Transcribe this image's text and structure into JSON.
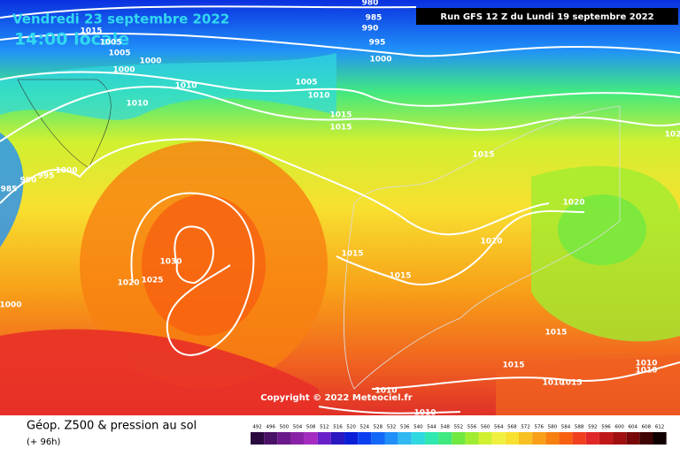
{
  "header": {
    "date": "Vendredi 23 septembre 2022",
    "time": "14:00 locale",
    "run": "Run GFS 12 Z du Lundi 19 septembre 2022"
  },
  "isobar_labels": [
    "980",
    "985",
    "990",
    "995",
    "1000",
    "1015",
    "1005",
    "1005",
    "1000",
    "1000",
    "1010",
    "1005",
    "1010",
    "1010",
    "1015",
    "1015",
    "1015",
    "1000",
    "990",
    "995",
    "985",
    "1020",
    "1020",
    "1030",
    "1015",
    "1015",
    "1025",
    "1020",
    "1000",
    "1015",
    "1015",
    "1010",
    "1010",
    "1010",
    "1010",
    "1015",
    "1010",
    "102"
  ],
  "copyright": "Copyright © 2022 Meteociel.fr",
  "footer": {
    "title": "Géop. Z500 & pression au sol",
    "lead": "(+ 96h)"
  },
  "scale": [
    {
      "value": 492,
      "color": "#2b0b3f"
    },
    {
      "value": 496,
      "color": "#4a1266"
    },
    {
      "value": 500,
      "color": "#6a1a8a"
    },
    {
      "value": 504,
      "color": "#8a22a8"
    },
    {
      "value": 508,
      "color": "#a42cc0"
    },
    {
      "value": 512,
      "color": "#6a20c8"
    },
    {
      "value": 516,
      "color": "#2a18c0"
    },
    {
      "value": 520,
      "color": "#0a1ed8"
    },
    {
      "value": 524,
      "color": "#0a40f0"
    },
    {
      "value": 528,
      "color": "#1468f8"
    },
    {
      "value": 532,
      "color": "#2090f8"
    },
    {
      "value": 536,
      "color": "#30b8f0"
    },
    {
      "value": 540,
      "color": "#30d8e0"
    },
    {
      "value": 544,
      "color": "#30e8b0"
    },
    {
      "value": 548,
      "color": "#40e880"
    },
    {
      "value": 552,
      "color": "#70e840"
    },
    {
      "value": 556,
      "color": "#a0ec30"
    },
    {
      "value": 560,
      "color": "#d0f030"
    },
    {
      "value": 564,
      "color": "#f0f040"
    },
    {
      "value": 568,
      "color": "#f8e030"
    },
    {
      "value": 572,
      "color": "#f8c020"
    },
    {
      "value": 576,
      "color": "#f8a018"
    },
    {
      "value": 580,
      "color": "#f88010"
    },
    {
      "value": 584,
      "color": "#f86010"
    },
    {
      "value": 588,
      "color": "#f04020"
    },
    {
      "value": 592,
      "color": "#e02828"
    },
    {
      "value": 596,
      "color": "#c01818"
    },
    {
      "value": 600,
      "color": "#a01010"
    },
    {
      "value": 604,
      "color": "#780808"
    },
    {
      "value": 608,
      "color": "#400404"
    },
    {
      "value": 612,
      "color": "#100000"
    }
  ]
}
